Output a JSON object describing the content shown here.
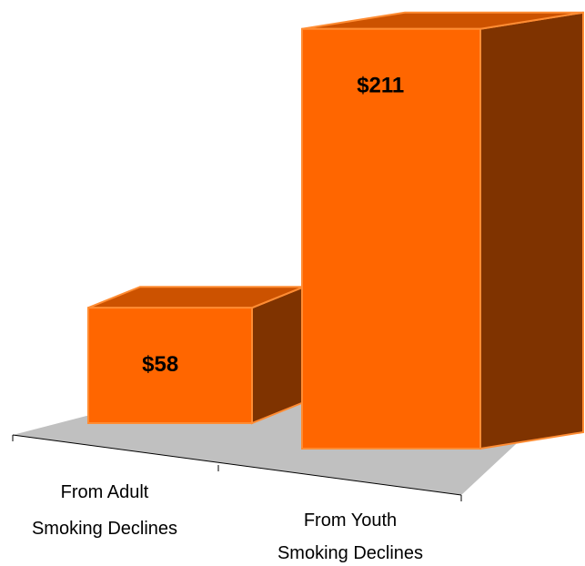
{
  "chart_data": {
    "type": "bar",
    "style": "3d-column",
    "categories": [
      [
        "From Adult",
        "Smoking Declines"
      ],
      [
        "From Youth",
        "Smoking Declines"
      ]
    ],
    "values": [
      58,
      211
    ],
    "data_labels": [
      "$58",
      "$211"
    ],
    "ylim": [
      0,
      215
    ],
    "title": "",
    "xlabel": "",
    "ylabel": "",
    "grid": false,
    "legend": "none"
  },
  "colors": {
    "bar_front": "#ff6600",
    "bar_top": "#cc5200",
    "bar_side": "#7f3300",
    "bar_edge": "#ff8c33",
    "floor": "#c0c0c0",
    "axis": "#000000"
  }
}
